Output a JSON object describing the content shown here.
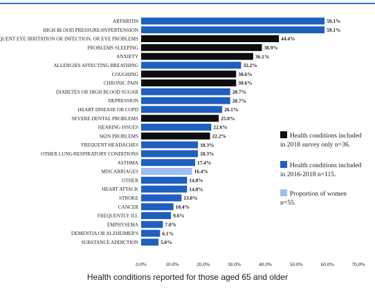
{
  "caption": "Health conditions reported for those aged 65 and older",
  "legend": [
    {
      "text_line1": "Health conditions included",
      "text_line2": "in 2018 survey only n=36.",
      "color": "#0d0d0d"
    },
    {
      "text_line1": "Health conditions included",
      "text_line2": "in 2016-2018 n=115.",
      "color": "#1f5fbf"
    },
    {
      "text_line1": "Proportion of women",
      "text_line2": "n=55.",
      "color": "#9dbfea"
    }
  ],
  "chart_data": {
    "type": "bar",
    "orientation": "horizontal",
    "title": "",
    "xlabel": "",
    "ylabel": "",
    "xlim": [
      0,
      70
    ],
    "x_ticks": [
      "0.0%",
      "10.0%",
      "20.0%",
      "30.0%",
      "40.0%",
      "50.0%",
      "60.0%",
      "70.0%"
    ],
    "grid": false,
    "legend_position": "right",
    "categories": [
      "ARTHRITIS",
      "HIGH BLOOD PRESSURE/HYPERTENSION",
      "FREQUENT EYE IRRITATION OR INFECTION, OR EYE PROBLEMS",
      "PROBLEMS SLEEPING",
      "ANXIETY",
      "ALLERGIES AFFECTING BREATHING",
      "COUGHING",
      "CHRONIC PAIN",
      "DIABETES OR HIGH BLOOD SUGAR",
      "DEPRESSION",
      "HEART DISEASE OR COPD",
      "SEVERE DENTAL PROBLEMS",
      "HEARING ISSUES",
      "SKIN PROBLEMS",
      "FREQUENT HEADACHES",
      "OTHER LUNG/RESPIRATORY CONDITIONS",
      "ASTHMA",
      "MISCARRIAGES",
      "OTHER",
      "HEART ATTACK",
      "STROKE",
      "CANCER",
      "FREQUENTLY ILL",
      "EMPHYSEMA",
      "DEMENTIA OR ALZHEIMER'S",
      "SUBSTANCE ADDICTION"
    ],
    "values": [
      59.1,
      59.1,
      44.4,
      38.9,
      36.1,
      32.2,
      30.6,
      30.6,
      28.7,
      28.7,
      26.1,
      25.0,
      22.6,
      22.2,
      18.3,
      18.3,
      17.4,
      16.4,
      14.8,
      14.8,
      13.0,
      10.4,
      9.6,
      7.0,
      6.1,
      5.6
    ],
    "value_labels": [
      "59.1%",
      "59.1%",
      "44.4%",
      "38.9%",
      "36.1%",
      "32.2%",
      "30.6%",
      "30.6%",
      "28.7%",
      "28.7%",
      "26.1%",
      "25.0%",
      "22.6%",
      "22.2%",
      "18.3%",
      "18.3%",
      "17.4%",
      "16.4%",
      "14.8%",
      "14.8%",
      "13.0%",
      "10.4%",
      "9.6%",
      "7.0%",
      "6.1%",
      "5.6%"
    ],
    "bar_group": [
      1,
      1,
      0,
      0,
      0,
      1,
      0,
      0,
      1,
      1,
      1,
      0,
      1,
      0,
      1,
      1,
      1,
      2,
      1,
      1,
      1,
      1,
      1,
      1,
      1,
      1
    ],
    "group_colors": [
      "#0d0d0d",
      "#1f5fbf",
      "#9dbfea"
    ]
  }
}
